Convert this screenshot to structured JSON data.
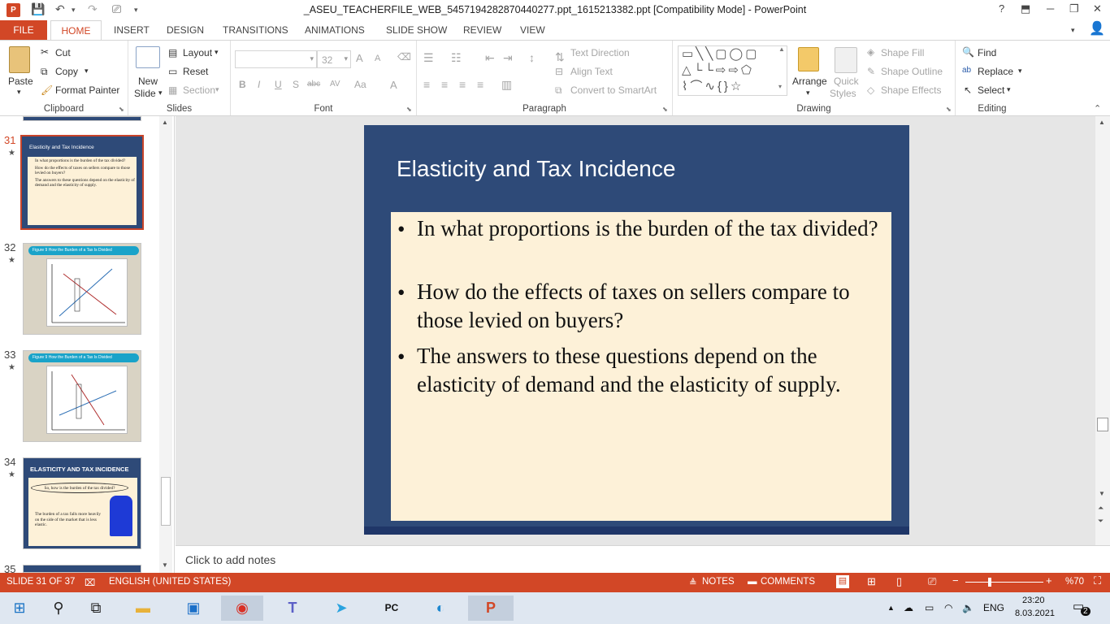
{
  "window": {
    "title": "_ASEU_TEACHERFILE_WEB_5457194282870440277.ppt_1615213382.ppt [Compatibility Mode] - PowerPoint",
    "help": "?",
    "minimize": "─",
    "restore": "❐",
    "close": "✕"
  },
  "tabs": {
    "file": "FILE",
    "home": "HOME",
    "items": [
      "INSERT",
      "DESIGN",
      "TRANSITIONS",
      "ANIMATIONS",
      "SLIDE SHOW",
      "REVIEW",
      "VIEW"
    ]
  },
  "ribbon": {
    "clipboard": {
      "label": "Clipboard",
      "paste": "Paste",
      "cut": "Cut",
      "copy": "Copy",
      "format_painter": "Format Painter"
    },
    "slides": {
      "label": "Slides",
      "new_slide_1": "New",
      "new_slide_2": "Slide",
      "layout": "Layout",
      "reset": "Reset",
      "section": "Section"
    },
    "font": {
      "label": "Font",
      "size": "32",
      "bold": "B",
      "italic": "I",
      "underline": "U",
      "shadow": "S",
      "strike": "abc",
      "spacing": "AV",
      "case": "Aa",
      "grow": "A",
      "shrink": "A",
      "color": "A"
    },
    "paragraph": {
      "label": "Paragraph",
      "text_direction": "Text Direction",
      "align_text": "Align Text",
      "smartart": "Convert to SmartArt"
    },
    "drawing": {
      "label": "Drawing",
      "arrange": "Arrange",
      "quick_styles_1": "Quick",
      "quick_styles_2": "Styles",
      "shape_fill": "Shape Fill",
      "shape_outline": "Shape Outline",
      "shape_effects": "Shape Effects"
    },
    "editing": {
      "label": "Editing",
      "find": "Find",
      "replace": "Replace",
      "select": "Select"
    }
  },
  "thumbnails": [
    {
      "num": "31",
      "title": "Elasticity and Tax Incidence",
      "lines": [
        "In what proportions is the burden of the tax divided?",
        "How do the effects of taxes on sellers compare to those levied on buyers?",
        "The answers to these questions depend on the elasticity of demand and the elasticity of supply."
      ]
    },
    {
      "num": "32",
      "title": "Figure 9 How the Burden of a Tax Is Divided"
    },
    {
      "num": "33",
      "title": "Figure 9 How the Burden of a Tax Is Divided"
    },
    {
      "num": "34",
      "title": "ELASTICITY AND TAX INCIDENCE",
      "bubble": "So, how is the burden of the tax divided?",
      "body": "The burden of a tax falls more heavily on the side of the market that is less elastic."
    },
    {
      "num": "35"
    }
  ],
  "slide": {
    "title": "Elasticity and Tax Incidence",
    "bullets": [
      "In what proportions is the burden of the tax divided?",
      "How do the effects of taxes on sellers compare to those levied on buyers?",
      "The answers to these questions depend on the elasticity of demand and the elasticity of supply."
    ],
    "colors": {
      "background": "#2e4a78",
      "body": "#fdf1d8",
      "footer": "#1f3668"
    }
  },
  "notes": {
    "placeholder": "Click to add notes"
  },
  "status": {
    "slide": "SLIDE 31 OF 37",
    "language": "ENGLISH (UNITED STATES)",
    "notes": "NOTES",
    "comments": "COMMENTS",
    "zoom": "%70"
  },
  "taskbar": {
    "lang": "ENG",
    "time": "23:20",
    "date": "8.03.2021",
    "notif": "2"
  }
}
